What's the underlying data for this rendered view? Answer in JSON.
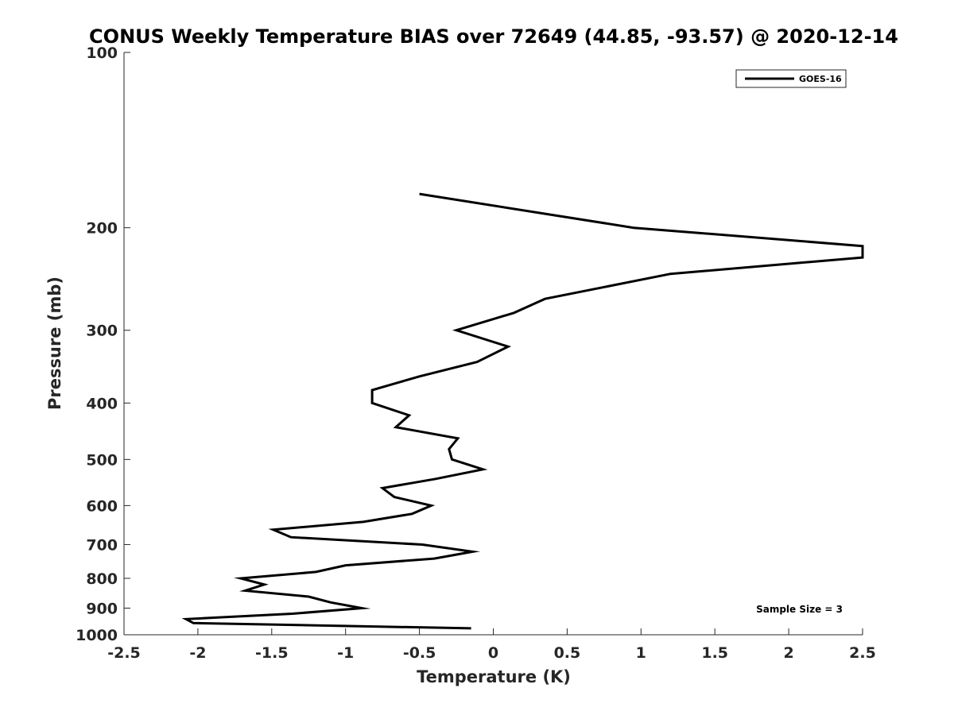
{
  "chart_data": {
    "type": "line",
    "title": "CONUS Weekly Temperature BIAS over 72649 (44.85, -93.57) @ 2020-12-14",
    "xlabel": "Temperature (K)",
    "ylabel": "Pressure (mb)",
    "xlim": [
      -2.5,
      2.5
    ],
    "ylim": [
      100,
      1000
    ],
    "y_scale": "log",
    "y_reversed": true,
    "x_ticks": [
      -2.5,
      -2,
      -1.5,
      -1,
      -0.5,
      0,
      0.5,
      1,
      1.5,
      2,
      2.5
    ],
    "x_tick_labels": [
      "-2.5",
      "-2",
      "-1.5",
      "-1",
      "-0.5",
      "0",
      "0.5",
      "1",
      "1.5",
      "2",
      "2.5"
    ],
    "y_ticks": [
      100,
      200,
      300,
      400,
      500,
      600,
      700,
      800,
      900,
      1000
    ],
    "y_tick_labels": [
      "100",
      "200",
      "300",
      "400",
      "500",
      "600",
      "700",
      "800",
      "900",
      "1000"
    ],
    "grid": false,
    "legend_position": "top-right",
    "series": [
      {
        "name": "GOES-16",
        "color": "#000000",
        "points": [
          {
            "x": -0.5,
            "p": 175
          },
          {
            "x": 0.95,
            "p": 200
          },
          {
            "x": 2.5,
            "p": 215
          },
          {
            "x": 2.5,
            "p": 225
          },
          {
            "x": 1.2,
            "p": 240
          },
          {
            "x": 0.35,
            "p": 265
          },
          {
            "x": 0.14,
            "p": 280
          },
          {
            "x": -0.25,
            "p": 300
          },
          {
            "x": 0.1,
            "p": 320
          },
          {
            "x": -0.11,
            "p": 340
          },
          {
            "x": -0.5,
            "p": 360
          },
          {
            "x": -0.82,
            "p": 380
          },
          {
            "x": -0.82,
            "p": 400
          },
          {
            "x": -0.57,
            "p": 420
          },
          {
            "x": -0.66,
            "p": 440
          },
          {
            "x": -0.24,
            "p": 460
          },
          {
            "x": -0.3,
            "p": 480
          },
          {
            "x": -0.28,
            "p": 500
          },
          {
            "x": -0.07,
            "p": 520
          },
          {
            "x": -0.39,
            "p": 540
          },
          {
            "x": -0.75,
            "p": 560
          },
          {
            "x": -0.67,
            "p": 580
          },
          {
            "x": -0.42,
            "p": 600
          },
          {
            "x": -0.55,
            "p": 620
          },
          {
            "x": -0.88,
            "p": 640
          },
          {
            "x": -1.49,
            "p": 660
          },
          {
            "x": -1.37,
            "p": 680
          },
          {
            "x": -0.48,
            "p": 700
          },
          {
            "x": -0.14,
            "p": 720
          },
          {
            "x": -0.4,
            "p": 740
          },
          {
            "x": -1.0,
            "p": 760
          },
          {
            "x": -1.2,
            "p": 780
          },
          {
            "x": -1.71,
            "p": 800
          },
          {
            "x": -1.55,
            "p": 820
          },
          {
            "x": -1.68,
            "p": 840
          },
          {
            "x": -1.25,
            "p": 860
          },
          {
            "x": -1.1,
            "p": 880
          },
          {
            "x": -0.89,
            "p": 900
          },
          {
            "x": -1.36,
            "p": 920
          },
          {
            "x": -2.08,
            "p": 940
          },
          {
            "x": -2.03,
            "p": 955
          },
          {
            "x": -0.15,
            "p": 975
          }
        ]
      }
    ],
    "annotations": [
      {
        "text": "Sample Size = 3",
        "position": "bottom-right"
      }
    ]
  }
}
